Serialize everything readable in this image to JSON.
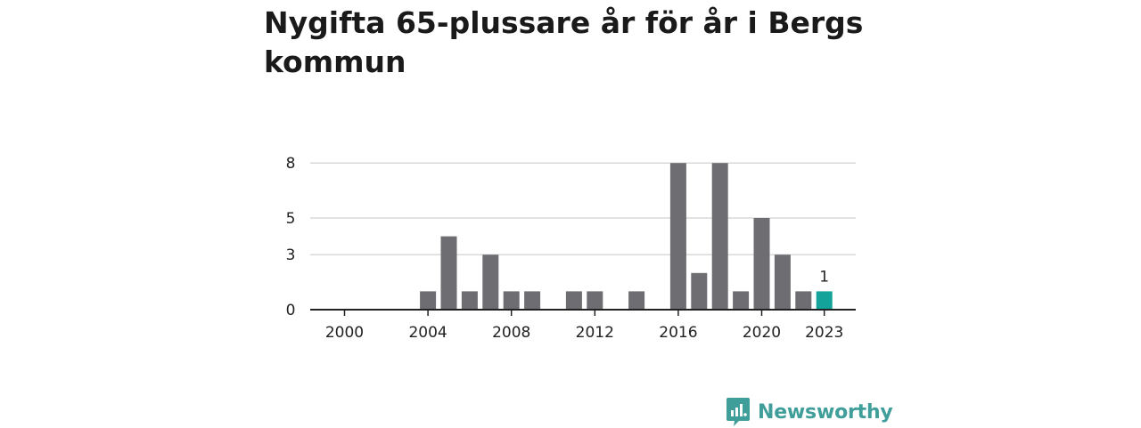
{
  "title": "Nygifta 65-plussare år för år i Bergs kommun",
  "brand": {
    "name": "Newsworthy",
    "icon": "newsworthy-logo-icon",
    "color": "#3f9e99"
  },
  "colors": {
    "bar": "#6e6d71",
    "highlight": "#14a39a",
    "grid": "#d9d9d9",
    "axis": "#222222"
  },
  "chart_data": {
    "type": "bar",
    "title": "Nygifta 65-plussare år för år i Bergs kommun",
    "xlabel": "",
    "ylabel": "",
    "categories": [
      2000,
      2001,
      2002,
      2003,
      2004,
      2005,
      2006,
      2007,
      2008,
      2009,
      2010,
      2011,
      2012,
      2013,
      2014,
      2015,
      2016,
      2017,
      2018,
      2019,
      2020,
      2021,
      2022,
      2023
    ],
    "values": [
      0,
      0,
      0,
      0,
      1,
      4,
      1,
      3,
      1,
      1,
      0,
      1,
      1,
      0,
      1,
      0,
      8,
      2,
      8,
      1,
      5,
      3,
      1,
      1
    ],
    "highlight_category": 2023,
    "data_labels": [
      {
        "category": 2023,
        "text": "1"
      }
    ],
    "x_ticks": [
      "2000",
      "2004",
      "2008",
      "2012",
      "2016",
      "2020",
      "2023"
    ],
    "y_ticks": [
      "0",
      "3",
      "5",
      "8"
    ],
    "ylim": [
      0,
      8
    ],
    "grid": true,
    "legend": "none"
  }
}
